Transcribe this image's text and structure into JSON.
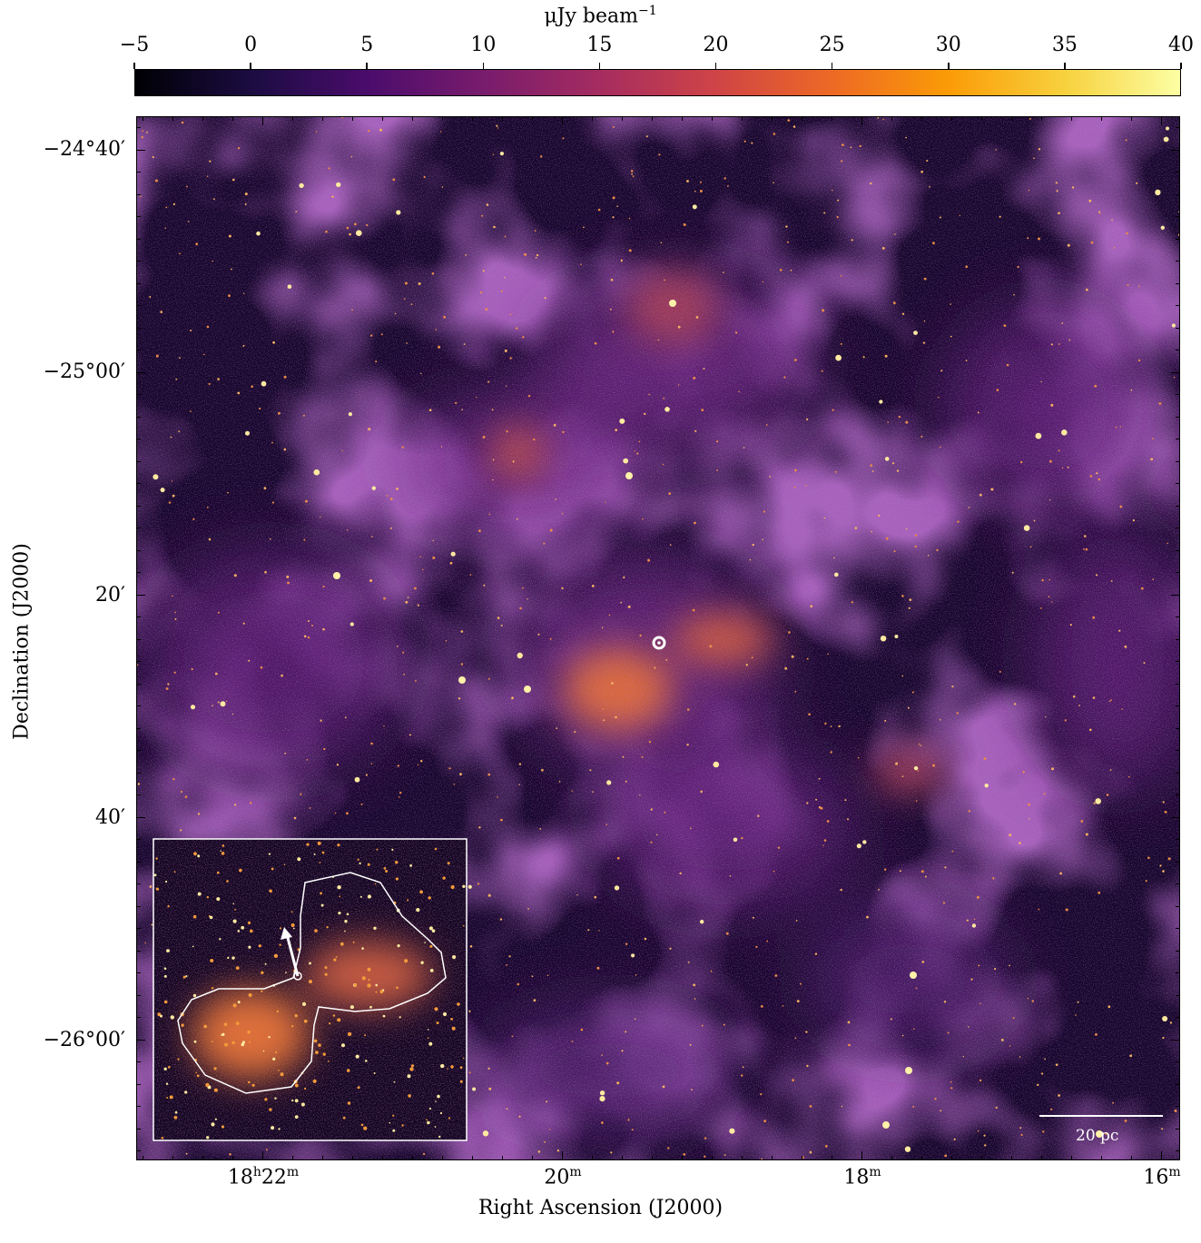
{
  "colorbar": {
    "title": "μJy beam",
    "title_exponent": "−1",
    "ticks": [
      "−5",
      "0",
      "5",
      "10",
      "15",
      "20",
      "25",
      "30",
      "35",
      "40"
    ],
    "range": [
      -5,
      40
    ],
    "colormap": [
      "#000004",
      "#1b0c41",
      "#4a0c6b",
      "#781c6d",
      "#a52c60",
      "#cf4446",
      "#ed6925",
      "#fb9b06",
      "#f7d13d",
      "#fcffa4"
    ]
  },
  "axes": {
    "xlabel": "Right Ascension (J2000)",
    "ylabel": "Declination (J2000)",
    "xticks": [
      {
        "main": "18",
        "sup1": "h",
        "main2": "22",
        "sup2": "m"
      },
      {
        "main": "20",
        "sup1": "m",
        "main2": "",
        "sup2": ""
      },
      {
        "main": "18",
        "sup1": "m",
        "main2": "",
        "sup2": ""
      },
      {
        "main": "16",
        "sup1": "m",
        "main2": "",
        "sup2": ""
      }
    ],
    "yticks": [
      "−24°40′",
      "−25°00′",
      "20′",
      "40′",
      "−26°00′"
    ]
  },
  "scalebar": {
    "label": "20 pc"
  },
  "image": {
    "description_colors": {
      "background": "#16062c",
      "diffuse": "#5a1a78",
      "bright": "#f39a3c",
      "peak": "#fdf2a8",
      "inset_border": "#ffffff"
    }
  }
}
